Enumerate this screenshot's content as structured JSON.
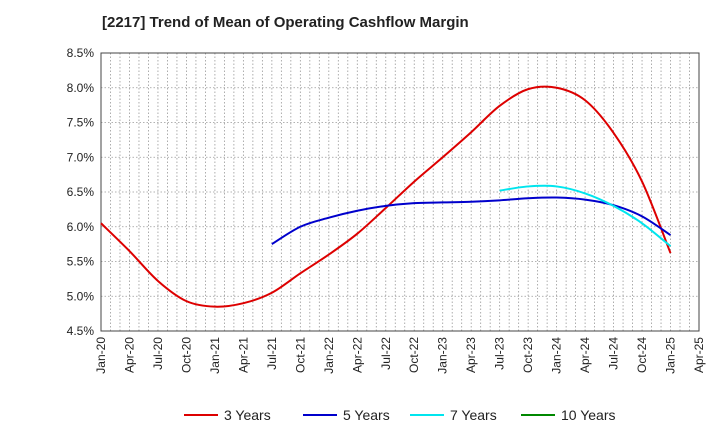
{
  "chart_data": {
    "type": "line",
    "title": "[2217]  Trend of Mean of Operating Cashflow Margin",
    "xlabel": "",
    "ylabel": "",
    "ylim": [
      4.5,
      8.5
    ],
    "y_ticks": [
      "4.5%",
      "5.0%",
      "5.5%",
      "6.0%",
      "6.5%",
      "7.0%",
      "7.5%",
      "8.0%",
      "8.5%"
    ],
    "y_tick_values": [
      4.5,
      5.0,
      5.5,
      6.0,
      6.5,
      7.0,
      7.5,
      8.0,
      8.5
    ],
    "x_ticks": [
      "Jan-20",
      "Apr-20",
      "Jul-20",
      "Oct-20",
      "Jan-21",
      "Apr-21",
      "Jul-21",
      "Oct-21",
      "Jan-22",
      "Apr-22",
      "Jul-22",
      "Oct-22",
      "Jan-23",
      "Apr-23",
      "Jul-23",
      "Oct-23",
      "Jan-24",
      "Apr-24",
      "Jul-24",
      "Oct-24",
      "Jan-25",
      "Apr-25"
    ],
    "grid": true,
    "legend_position": "bottom",
    "series": [
      {
        "name": "3 Years",
        "color": "#dd0000",
        "x": [
          "Jan-20",
          "Apr-20",
          "Jul-20",
          "Oct-20",
          "Jan-21",
          "Apr-21",
          "Jul-21",
          "Oct-21",
          "Jan-22",
          "Apr-22",
          "Jul-22",
          "Oct-22",
          "Jan-23",
          "Apr-23",
          "Jul-23",
          "Oct-23",
          "Jan-24",
          "Apr-24",
          "Jul-24",
          "Oct-24",
          "Jan-25"
        ],
        "values": [
          6.05,
          5.65,
          5.22,
          4.93,
          4.85,
          4.9,
          5.05,
          5.33,
          5.6,
          5.9,
          6.27,
          6.65,
          7.0,
          7.36,
          7.74,
          7.98,
          8.0,
          7.82,
          7.35,
          6.65,
          5.62
        ]
      },
      {
        "name": "5 Years",
        "color": "#0000cc",
        "x": [
          "Jul-21",
          "Oct-21",
          "Jan-22",
          "Apr-22",
          "Jul-22",
          "Oct-22",
          "Jan-23",
          "Apr-23",
          "Jul-23",
          "Oct-23",
          "Jan-24",
          "Apr-24",
          "Jul-24",
          "Oct-24",
          "Jan-25"
        ],
        "values": [
          5.75,
          6.0,
          6.13,
          6.23,
          6.3,
          6.34,
          6.35,
          6.36,
          6.38,
          6.41,
          6.42,
          6.39,
          6.31,
          6.15,
          5.88
        ]
      },
      {
        "name": "7 Years",
        "color": "#00e5ee",
        "x": [
          "Jul-23",
          "Oct-23",
          "Jan-24",
          "Apr-24",
          "Jul-24",
          "Oct-24",
          "Jan-25"
        ],
        "values": [
          6.52,
          6.58,
          6.58,
          6.48,
          6.3,
          6.05,
          5.72
        ]
      },
      {
        "name": "10 Years",
        "color": "#008800",
        "x": [],
        "values": []
      }
    ]
  }
}
